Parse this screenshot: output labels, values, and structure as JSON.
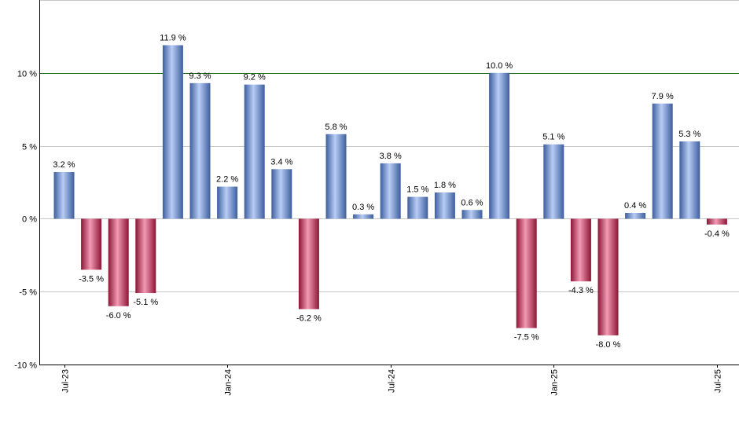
{
  "chart_data": {
    "type": "bar",
    "title": "",
    "xlabel": "",
    "ylabel": "",
    "ylim": [
      -10,
      15
    ],
    "yticks": [
      -10,
      -5,
      0,
      5,
      10
    ],
    "ytick_labels": [
      "-10 %",
      "-5 %",
      "0 %",
      "5 %",
      "10 %"
    ],
    "reference_line": 10,
    "grid": true,
    "value_suffix": " %",
    "categories": [
      "2023-07",
      "2023-08",
      "2023-09",
      "2023-10",
      "2023-11",
      "2023-12",
      "2024-01",
      "2024-02",
      "2024-03",
      "2024-04",
      "2024-05",
      "2024-06",
      "2024-07",
      "2024-08",
      "2024-09",
      "2024-10",
      "2024-11",
      "2024-12",
      "2025-01",
      "2025-02",
      "2025-03",
      "2025-04",
      "2025-05",
      "2025-06",
      "2025-07"
    ],
    "values": [
      3.2,
      -3.5,
      -6.0,
      -5.1,
      11.9,
      9.3,
      2.2,
      9.2,
      3.4,
      -6.2,
      5.8,
      0.3,
      3.8,
      1.5,
      1.8,
      0.6,
      10.0,
      -7.5,
      5.1,
      -4.3,
      -8.0,
      0.4,
      7.9,
      5.3,
      -0.4
    ],
    "value_labels": [
      "3.2 %",
      "-3.5 %",
      "-6.0 %",
      "-5.1 %",
      "11.9 %",
      "9.3 %",
      "2.2 %",
      "9.2 %",
      "3.4 %",
      "-6.2 %",
      "5.8 %",
      "0.3 %",
      "3.8 %",
      "1.5 %",
      "1.8 %",
      "0.6 %",
      "10.0 %",
      "-7.5 %",
      "5.1 %",
      "-4.3 %",
      "-8.0 %",
      "0.4 %",
      "7.9 %",
      "5.3 %",
      "-0.4 %"
    ],
    "xtick_labels": [
      {
        "index": 0,
        "label": "Jul-23"
      },
      {
        "index": 6,
        "label": "Jan-24"
      },
      {
        "index": 12,
        "label": "Jul-24"
      },
      {
        "index": 18,
        "label": "Jan-25"
      },
      {
        "index": 24,
        "label": "Jul-25"
      }
    ],
    "colors": {
      "positive_dark": "#3d5e9e",
      "positive_light": "#b8cdf5",
      "negative_dark": "#8c1535",
      "negative_light": "#f29ab4",
      "reference_line": "#1c6b1c",
      "grid": "#c8c8c8",
      "axis": "#000000"
    }
  }
}
